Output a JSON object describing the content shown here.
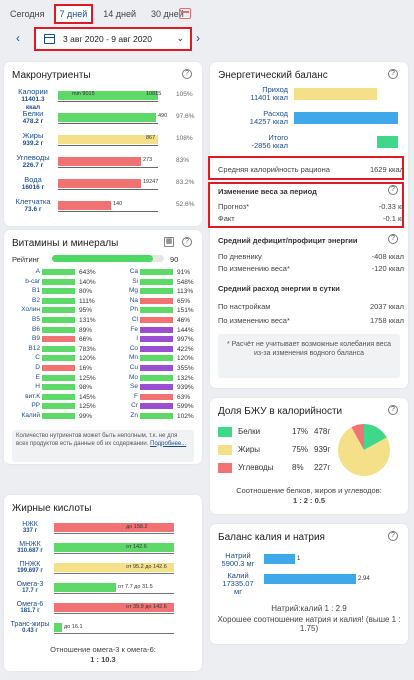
{
  "tabs": [
    {
      "label": "Сегодня",
      "active": false
    },
    {
      "label": "7 дней",
      "active": true
    },
    {
      "label": "14 дней",
      "active": false
    },
    {
      "label": "30 дней",
      "active": false
    }
  ],
  "date_range": "3 авг 2020 - 9 авг 2020",
  "macros": {
    "title": "Макронутриенты",
    "rows": [
      {
        "name": "Калории",
        "value": "11401.3",
        "unit": "ккал",
        "bar_label_left": "min 9015",
        "bar_label_right": "10815",
        "pct": "105%",
        "color": "#5fd86a",
        "fill": 1.0
      },
      {
        "name": "Белки",
        "value": "478.2 г",
        "unit": "",
        "bar_label_left": "",
        "bar_label_right": "490",
        "pct": "97.6%",
        "color": "#5fd86a",
        "fill": 0.98
      },
      {
        "name": "Жиры",
        "value": "939.2 г",
        "unit": "",
        "bar_label_left": "",
        "bar_label_right": "867",
        "pct": "108%",
        "color": "#f5e08a",
        "fill": 1.0
      },
      {
        "name": "Углеводы",
        "value": "226.7 г",
        "unit": "",
        "bar_label_left": "",
        "bar_label_right": "273",
        "pct": "83%",
        "color": "#f07272",
        "fill": 0.83
      },
      {
        "name": "Вода",
        "value": "16016 г",
        "unit": "",
        "bar_label_left": "",
        "bar_label_right": "19247",
        "pct": "83.2%",
        "color": "#f07272",
        "fill": 0.83
      },
      {
        "name": "Клетчатка",
        "value": "73.6 г",
        "unit": "",
        "bar_label_left": "",
        "bar_label_right": "140",
        "pct": "52.6%",
        "color": "#f07272",
        "fill": 0.53
      }
    ]
  },
  "vitamins": {
    "title": "Витамины и минералы",
    "rating_label": "Рейтинг",
    "rating_value": "90",
    "rating_fill": 0.9,
    "left": [
      {
        "name": "A",
        "pct": "643%",
        "color": "#5fd86a"
      },
      {
        "name": "b-car",
        "pct": "140%",
        "color": "#5fd86a"
      },
      {
        "name": "B1",
        "pct": "80%",
        "color": "#5fd86a"
      },
      {
        "name": "B2",
        "pct": "111%",
        "color": "#5fd86a"
      },
      {
        "name": "Холин",
        "pct": "95%",
        "color": "#5fd86a"
      },
      {
        "name": "B5",
        "pct": "131%",
        "color": "#5fd86a"
      },
      {
        "name": "B6",
        "pct": "89%",
        "color": "#5fd86a"
      },
      {
        "name": "B9",
        "pct": "66%",
        "color": "#f07272"
      },
      {
        "name": "B12",
        "pct": "783%",
        "color": "#5fd86a"
      },
      {
        "name": "C",
        "pct": "120%",
        "color": "#5fd86a"
      },
      {
        "name": "D",
        "pct": "16%",
        "color": "#f07272"
      },
      {
        "name": "E",
        "pct": "125%",
        "color": "#5fd86a"
      },
      {
        "name": "H",
        "pct": "98%",
        "color": "#5fd86a"
      },
      {
        "name": "вит.К",
        "pct": "145%",
        "color": "#5fd86a"
      },
      {
        "name": "PP",
        "pct": "125%",
        "color": "#5fd86a"
      },
      {
        "name": "Калий",
        "pct": "99%",
        "color": "#5fd86a"
      }
    ],
    "right": [
      {
        "name": "Ca",
        "pct": "91%",
        "color": "#5fd86a"
      },
      {
        "name": "Si",
        "pct": "548%",
        "color": "#5fd86a"
      },
      {
        "name": "Mg",
        "pct": "113%",
        "color": "#5fd86a"
      },
      {
        "name": "Na",
        "pct": "65%",
        "color": "#f07272"
      },
      {
        "name": "Ph",
        "pct": "151%",
        "color": "#5fd86a"
      },
      {
        "name": "Cl",
        "pct": "46%",
        "color": "#f07272"
      },
      {
        "name": "Fe",
        "pct": "144%",
        "color": "#9b4fd0"
      },
      {
        "name": "I",
        "pct": "997%",
        "color": "#9b4fd0"
      },
      {
        "name": "Co",
        "pct": "422%",
        "color": "#9b4fd0"
      },
      {
        "name": "Mn",
        "pct": "120%",
        "color": "#5fd86a"
      },
      {
        "name": "Cu",
        "pct": "355%",
        "color": "#9b4fd0"
      },
      {
        "name": "Mo",
        "pct": "132%",
        "color": "#5fd86a"
      },
      {
        "name": "Se",
        "pct": "939%",
        "color": "#9b4fd0"
      },
      {
        "name": "F",
        "pct": "63%",
        "color": "#f07272"
      },
      {
        "name": "Cr",
        "pct": "599%",
        "color": "#9b4fd0"
      },
      {
        "name": "Zn",
        "pct": "102%",
        "color": "#5fd86a"
      }
    ],
    "note": "Количество нутриентов может быть неполным, т.к. не для всех продуктов есть данные об их содержании.",
    "note_link": "Подробнее..."
  },
  "fatty": {
    "title": "Жирные кислоты",
    "rows": [
      {
        "name": "НЖК",
        "value": "337 г",
        "inlabel": "до 158.2",
        "color": "#f07272",
        "fill": 1.0
      },
      {
        "name": "МНЖК",
        "value": "310.687 г",
        "inlabel": "от 142.6",
        "color": "#5fd86a",
        "fill": 1.0
      },
      {
        "name": "ПНЖК",
        "value": "199.697 г",
        "inlabel": "от 95.2 до 142.6",
        "color": "#f5e08a",
        "fill": 1.0
      },
      {
        "name": "Омега-3",
        "value": "17.7 г",
        "inlabel": "от 7.7 до 31.5",
        "color": "#5fd86a",
        "fill": 0.52
      },
      {
        "name": "Омега-6",
        "value": "181.7 г",
        "inlabel": "от 39.9 до 142.6",
        "color": "#f07272",
        "fill": 1.0
      },
      {
        "name": "Транс-жиры",
        "value": "0.43 г",
        "inlabel": "до 16.1",
        "color": "#5fd86a",
        "fill": 0.07
      }
    ],
    "ratio_text": "Отношение омега-3 к омега-6:",
    "ratio_value": "1 : 10.3"
  },
  "energy": {
    "title": "Энергетический баланс",
    "rows": [
      {
        "name": "Приход",
        "value": "11401 ккал",
        "color": "#f5e08a"
      },
      {
        "name": "Расход",
        "value": "14257 ккал",
        "color": "#3fa8e8"
      },
      {
        "name": "Итого",
        "value": "-2856 ккал",
        "color": "#3fd88a"
      }
    ],
    "avg_label": "Средняя калорийность рациона",
    "avg_value": "1629 ккал",
    "weight_title": "Изменение веса за период",
    "forecast_label": "Прогноз*",
    "forecast_value": "-0.33 кг",
    "fact_label": "Факт",
    "fact_value": "-0.1 кг",
    "deficit_title": "Средний дефицит/профицит энергии",
    "deficit_diary_label": "По дневнику",
    "deficit_diary_value": "-408 ккал",
    "deficit_weight_label": "По изменению веса*",
    "deficit_weight_value": "-120 ккал",
    "expense_title": "Средний расход энергии в сутки",
    "expense_settings_label": "По настройкам",
    "expense_settings_value": "2037 ккал",
    "expense_weight_label": "По изменению веса*",
    "expense_weight_value": "1758 ккал",
    "footnote": "* Расчёт не учитывает возможные колебания веса из-за изменения водного баланса"
  },
  "bju": {
    "title": "Доля БЖУ в калорийности",
    "rows": [
      {
        "name": "Белки",
        "pct": "17%",
        "grams": "478г",
        "color": "#3fd88a"
      },
      {
        "name": "Жиры",
        "pct": "75%",
        "grams": "939г",
        "color": "#f5e08a"
      },
      {
        "name": "Углеводы",
        "pct": "8%",
        "grams": "227г",
        "color": "#f07272"
      }
    ],
    "ratio_text": "Соотношение белков, жиров и углеводов:",
    "ratio_value": "1 : 2 : 0.5"
  },
  "kna": {
    "title": "Баланс калия и натрия",
    "rows": [
      {
        "name": "Натрий",
        "value": "5900.3 мг",
        "num": "1",
        "color": "#3fa8e8",
        "fill": 0.34
      },
      {
        "name": "Калий",
        "value": "17335.07 мг",
        "num": "2.94",
        "color": "#3fa8e8",
        "fill": 1.0
      }
    ],
    "ratio_text": "Натрий:калий 1 : 2.9",
    "ratio_comment": "Хорошее соотношение натрия и калия! (выше 1 : 1.75)"
  }
}
